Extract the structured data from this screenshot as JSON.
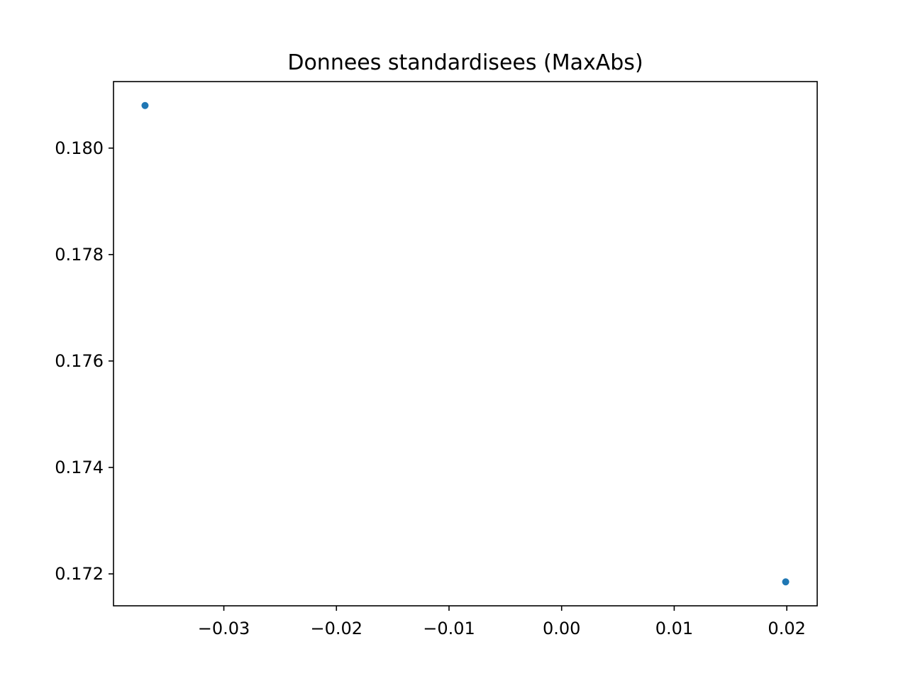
{
  "chart_data": {
    "type": "scatter",
    "title": "Donnees standardisees (MaxAbs)",
    "xlabel": "",
    "ylabel": "",
    "xlim": [
      -0.0398,
      0.0227
    ],
    "ylim": [
      0.1714,
      0.18125
    ],
    "xticks": [
      -0.03,
      -0.02,
      -0.01,
      0.0,
      0.01,
      0.02
    ],
    "xtick_labels": [
      "−0.03",
      "−0.02",
      "−0.01",
      "0.00",
      "0.01",
      "0.02"
    ],
    "yticks": [
      0.172,
      0.174,
      0.176,
      0.178,
      0.18
    ],
    "ytick_labels": [
      "0.172",
      "0.174",
      "0.176",
      "0.178",
      "0.180"
    ],
    "grid": false,
    "legend": false,
    "series": [
      {
        "color": "#1f77b4",
        "points": [
          {
            "x": -0.037,
            "y": 0.1808
          },
          {
            "x": 0.0199,
            "y": 0.17185
          }
        ]
      }
    ]
  }
}
